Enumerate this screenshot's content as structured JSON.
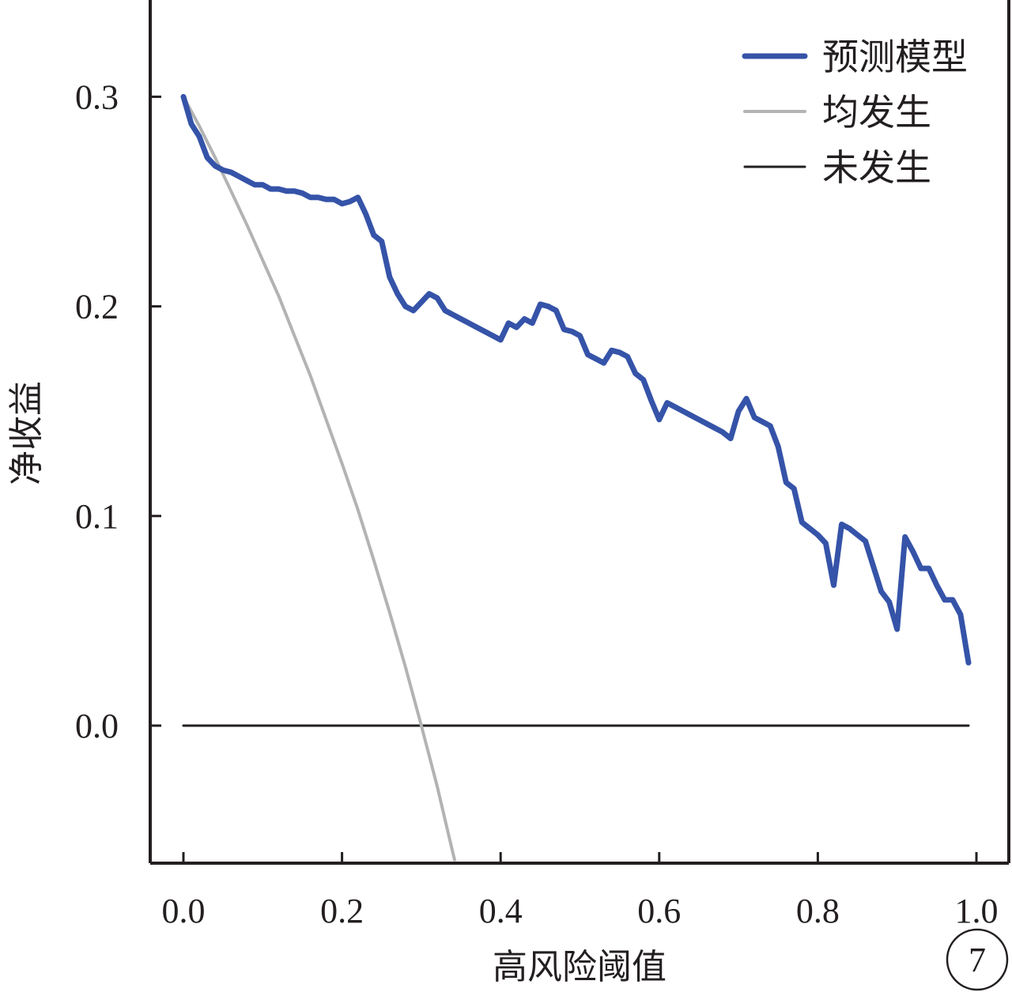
{
  "chart_data": {
    "type": "line",
    "xlabel": "高风险阈值",
    "ylabel": "净收益",
    "xlim": [
      0.0,
      1.0
    ],
    "ylim": [
      -0.065,
      0.345
    ],
    "x_ticks": [
      "0.0",
      "0.2",
      "0.4",
      "0.6",
      "0.8",
      "1.0"
    ],
    "y_ticks": [
      "0.0",
      "0.1",
      "0.2",
      "0.3"
    ],
    "legend_position": "top-right",
    "panel_label": "7",
    "series": [
      {
        "name": "预测模型",
        "color": "#3553a8",
        "x": [
          0.0,
          0.01,
          0.02,
          0.03,
          0.04,
          0.05,
          0.06,
          0.07,
          0.08,
          0.09,
          0.1,
          0.11,
          0.12,
          0.13,
          0.14,
          0.15,
          0.16,
          0.17,
          0.18,
          0.19,
          0.2,
          0.21,
          0.22,
          0.23,
          0.24,
          0.25,
          0.26,
          0.27,
          0.28,
          0.29,
          0.3,
          0.31,
          0.32,
          0.33,
          0.34,
          0.35,
          0.36,
          0.37,
          0.38,
          0.39,
          0.4,
          0.41,
          0.42,
          0.43,
          0.44,
          0.45,
          0.46,
          0.47,
          0.48,
          0.49,
          0.5,
          0.51,
          0.52,
          0.53,
          0.54,
          0.55,
          0.56,
          0.57,
          0.58,
          0.59,
          0.6,
          0.61,
          0.62,
          0.63,
          0.64,
          0.65,
          0.66,
          0.67,
          0.68,
          0.69,
          0.7,
          0.71,
          0.72,
          0.73,
          0.74,
          0.75,
          0.76,
          0.77,
          0.78,
          0.79,
          0.8,
          0.81,
          0.82,
          0.83,
          0.84,
          0.85,
          0.86,
          0.87,
          0.88,
          0.89,
          0.9,
          0.91,
          0.92,
          0.93,
          0.94,
          0.95,
          0.96,
          0.97,
          0.98,
          0.99
        ],
        "values": [
          0.3,
          0.287,
          0.281,
          0.271,
          0.267,
          0.265,
          0.264,
          0.262,
          0.26,
          0.258,
          0.258,
          0.256,
          0.256,
          0.255,
          0.255,
          0.254,
          0.252,
          0.252,
          0.251,
          0.251,
          0.249,
          0.25,
          0.252,
          0.244,
          0.234,
          0.231,
          0.214,
          0.206,
          0.2,
          0.198,
          0.202,
          0.206,
          0.204,
          0.198,
          0.196,
          0.194,
          0.192,
          0.19,
          0.188,
          0.186,
          0.184,
          0.192,
          0.19,
          0.194,
          0.192,
          0.201,
          0.2,
          0.198,
          0.189,
          0.188,
          0.186,
          0.177,
          0.175,
          0.173,
          0.179,
          0.178,
          0.176,
          0.168,
          0.165,
          0.155,
          0.146,
          0.154,
          0.152,
          0.15,
          0.148,
          0.146,
          0.144,
          0.142,
          0.14,
          0.137,
          0.15,
          0.156,
          0.147,
          0.145,
          0.143,
          0.133,
          0.116,
          0.113,
          0.097,
          0.094,
          0.091,
          0.087,
          0.067,
          0.096,
          0.094,
          0.091,
          0.088,
          0.076,
          0.064,
          0.059,
          0.046,
          0.09,
          0.083,
          0.075,
          0.075,
          0.067,
          0.06,
          0.06,
          0.053,
          0.03
        ]
      },
      {
        "name": "均发生",
        "color": "#b3b3b3",
        "x": [
          0.0,
          0.02,
          0.04,
          0.06,
          0.08,
          0.1,
          0.12,
          0.14,
          0.16,
          0.18,
          0.2,
          0.22,
          0.24,
          0.26,
          0.28,
          0.3,
          0.32,
          0.34,
          0.342
        ],
        "values": [
          0.3,
          0.286,
          0.271,
          0.255,
          0.239,
          0.222,
          0.205,
          0.186,
          0.167,
          0.146,
          0.125,
          0.103,
          0.079,
          0.054,
          0.028,
          0.0,
          -0.029,
          -0.061,
          -0.064
        ]
      },
      {
        "name": "未发生",
        "color": "#231f20",
        "x": [
          0.0,
          0.99
        ],
        "values": [
          0.0,
          0.0
        ]
      }
    ]
  }
}
